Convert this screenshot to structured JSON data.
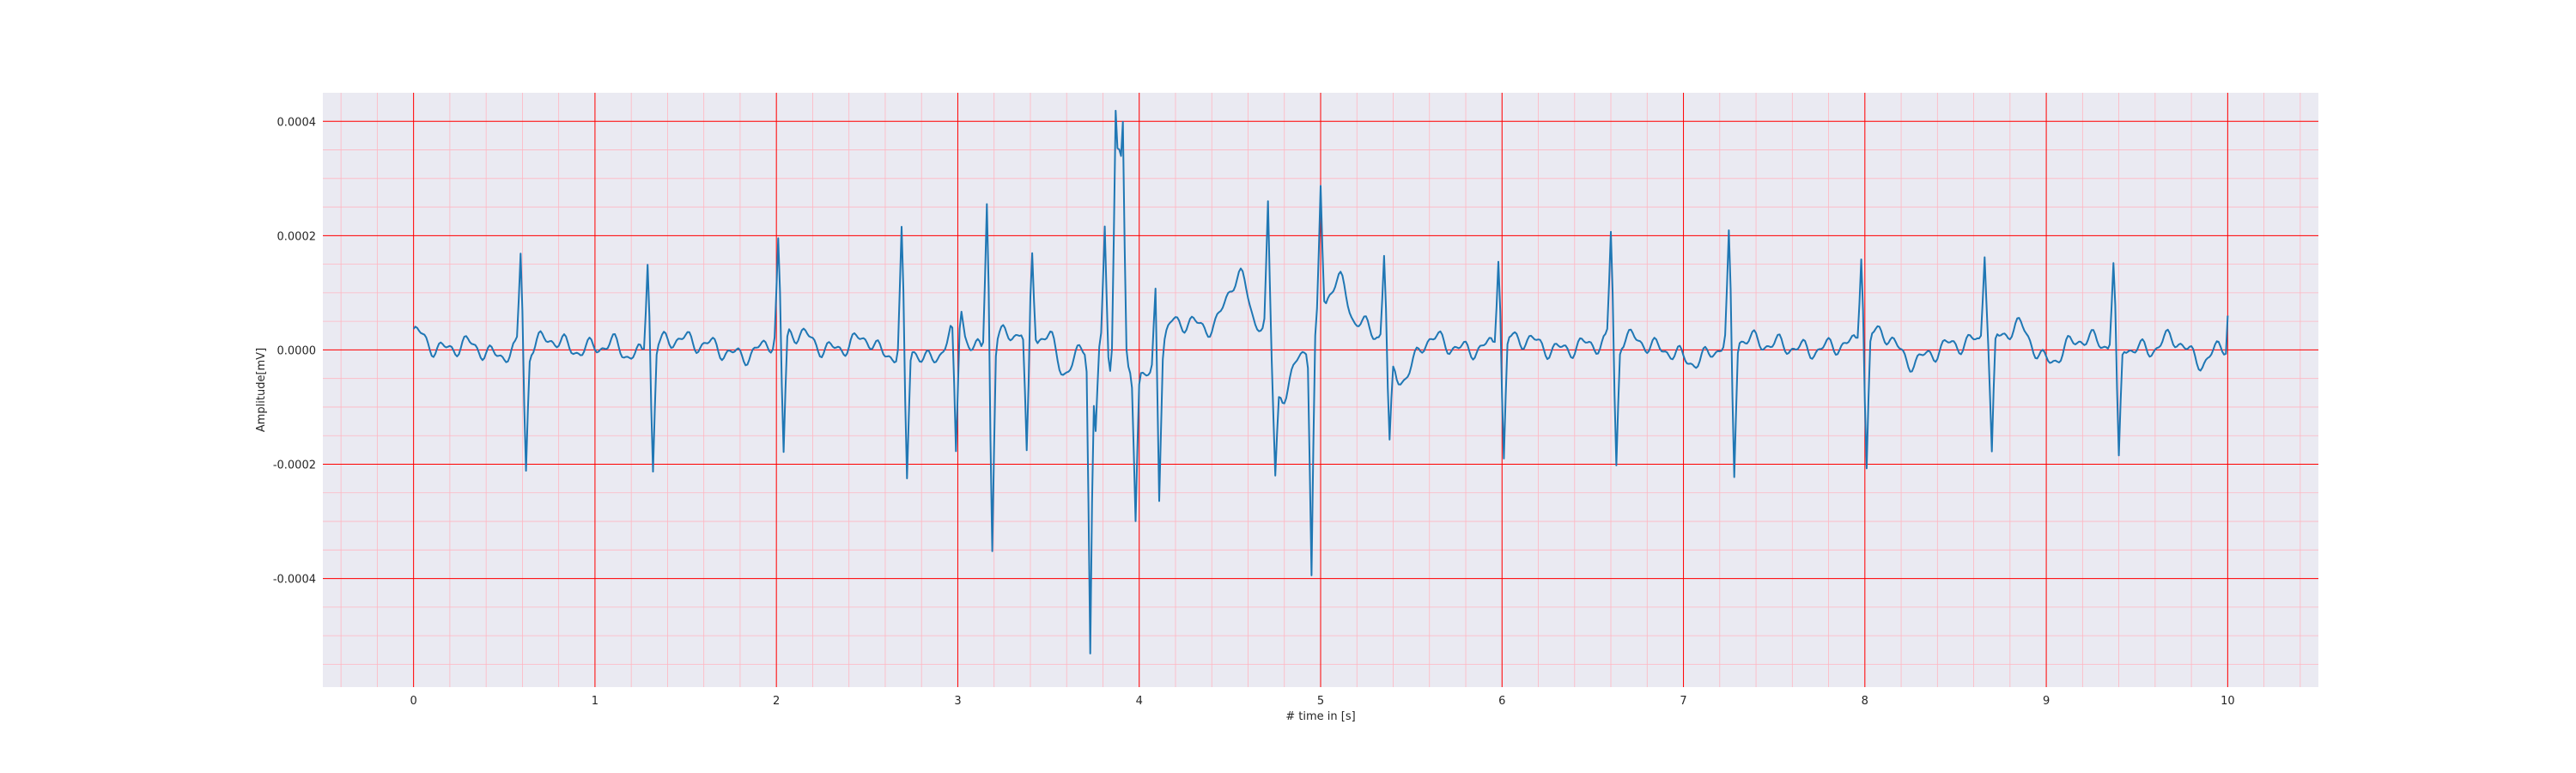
{
  "chart_data": {
    "type": "line",
    "title": "",
    "xlabel": "# time in [s]",
    "ylabel": "Amplitude[mV]",
    "xlim": [
      -0.5,
      10.5
    ],
    "ylim": [
      -0.00059,
      0.00045
    ],
    "grid": true,
    "minor_grid": true,
    "x_ticks": [
      0,
      1,
      2,
      3,
      4,
      5,
      6,
      7,
      8,
      9,
      10
    ],
    "x_tick_labels": [
      "0",
      "1",
      "2",
      "3",
      "4",
      "5",
      "6",
      "7",
      "8",
      "9",
      "10"
    ],
    "y_ticks": [
      -0.0004,
      -0.0002,
      0.0,
      0.0002,
      0.0004
    ],
    "y_tick_labels": [
      "-0.0004",
      "-0.0002",
      "0.0000",
      "0.0002",
      "0.0004"
    ],
    "colors": {
      "background": "#eaeaf2",
      "line": "#1f77b4",
      "major_grid": "#ff0000",
      "minor_grid": "#ffb6c1"
    },
    "sampling_step_s": 0.01,
    "series": [
      {
        "x_start": 0,
        "x_end": 10,
        "shape": {
          "baseline_wander": [
            [
              0.0,
              3e-05
            ],
            [
              0.15,
              0.0
            ],
            [
              0.3,
              1e-05
            ],
            [
              0.45,
              -1e-05
            ],
            [
              0.6,
              0.0
            ],
            [
              0.75,
              2e-05
            ],
            [
              0.9,
              0.0
            ],
            [
              1.1,
              1e-05
            ],
            [
              1.2,
              -1e-05
            ],
            [
              1.45,
              2e-05
            ],
            [
              1.6,
              1e-05
            ],
            [
              1.8,
              -1e-05
            ],
            [
              2.1,
              3e-05
            ],
            [
              2.3,
              0.0
            ],
            [
              2.5,
              2e-05
            ],
            [
              2.6,
              -1e-05
            ],
            [
              2.75,
              0.0
            ],
            [
              2.85,
              -2e-05
            ],
            [
              3.0,
              4e-05
            ],
            [
              3.1,
              0.0
            ],
            [
              3.3,
              3e-05
            ],
            [
              3.5,
              2e-05
            ],
            [
              3.6,
              -4e-05
            ],
            [
              3.7,
              1e-05
            ],
            [
              3.85,
              0.0
            ],
            [
              3.95,
              -4e-05
            ],
            [
              4.05,
              -5e-05
            ],
            [
              4.2,
              5e-05
            ],
            [
              4.4,
              4e-05
            ],
            [
              4.55,
              0.00013
            ],
            [
              4.65,
              5e-05
            ],
            [
              4.8,
              -8e-05
            ],
            [
              4.9,
              0.0
            ],
            [
              5.1,
              0.00012
            ],
            [
              5.2,
              5e-05
            ],
            [
              5.3,
              3e-05
            ],
            [
              5.45,
              -5e-05
            ],
            [
              5.6,
              2e-05
            ],
            [
              5.8,
              0.0
            ],
            [
              6.1,
              2e-05
            ],
            [
              6.3,
              0.0
            ],
            [
              6.5,
              1e-05
            ],
            [
              6.7,
              2e-05
            ],
            [
              6.9,
              0.0
            ],
            [
              7.05,
              -2e-05
            ],
            [
              7.3,
              2e-05
            ],
            [
              7.5,
              1e-05
            ],
            [
              7.7,
              0.0
            ],
            [
              7.9,
              1e-05
            ],
            [
              8.1,
              3e-05
            ],
            [
              8.25,
              -2e-05
            ],
            [
              8.5,
              1e-05
            ],
            [
              8.7,
              2e-05
            ],
            [
              8.85,
              4e-05
            ],
            [
              9.0,
              -2e-05
            ],
            [
              9.2,
              2e-05
            ],
            [
              9.35,
              1e-05
            ],
            [
              9.55,
              0.0
            ],
            [
              9.7,
              2e-05
            ],
            [
              9.85,
              -2e-05
            ],
            [
              10.0,
              1e-05
            ]
          ],
          "spikes": [
            [
              0.59,
              0.00017,
              0.62,
              -0.00021
            ],
            [
              1.29,
              0.000165,
              1.32,
              -0.000215
            ],
            [
              2.01,
              0.000165,
              2.04,
              -0.00021
            ],
            [
              2.69,
              0.000205,
              2.72,
              -0.00023
            ],
            [
              2.99,
              -0.000225,
              3.02,
              4e-05
            ],
            [
              3.16,
              0.00026,
              3.19,
              -0.00036
            ],
            [
              3.38,
              -0.00022,
              3.41,
              0.00015
            ],
            [
              3.73,
              -0.00054,
              3.76,
              -0.00015
            ],
            [
              3.81,
              0.00021,
              3.84,
              -2e-05
            ],
            [
              3.87,
              0.0004,
              3.89,
              0.00031
            ],
            [
              3.91,
              0.0004,
              3.98,
              -0.00024
            ],
            [
              4.09,
              0.00016,
              4.11,
              -0.00024
            ],
            [
              4.71,
              0.00024,
              4.75,
              -0.00017
            ],
            [
              4.95,
              -0.00041,
              5.0,
              0.000225
            ],
            [
              5.35,
              0.00016,
              5.38,
              -0.00016
            ],
            [
              5.98,
              0.00016,
              6.01,
              -0.00021
            ],
            [
              6.6,
              0.00019,
              6.63,
              -0.00022
            ],
            [
              7.25,
              0.000175,
              7.28,
              -0.00024
            ],
            [
              7.98,
              0.00016,
              8.01,
              -0.00023
            ],
            [
              8.66,
              0.00016,
              8.7,
              -0.00021
            ],
            [
              9.37,
              0.00014,
              9.4,
              -0.00021
            ]
          ],
          "end_value": 6e-05
        }
      }
    ]
  }
}
